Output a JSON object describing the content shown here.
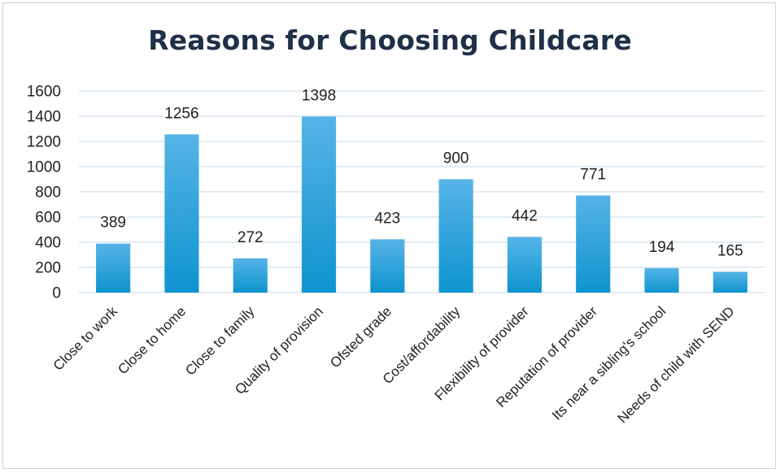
{
  "chart_data": {
    "type": "bar",
    "title": "Reasons for Choosing Childcare",
    "xlabel": "",
    "ylabel": "",
    "categories": [
      "Close to work",
      "Close to home",
      "Close to family",
      "Quality of provision",
      "Ofsted grade",
      "Cost/affordability",
      "Flexibility of provider",
      "Reputation of provider",
      "Its near a sibling's school",
      "Needs of child with SEND"
    ],
    "values": [
      389,
      1256,
      272,
      1398,
      423,
      900,
      442,
      771,
      194,
      165
    ],
    "ylim": [
      0,
      1600
    ],
    "yticks": [
      0,
      200,
      400,
      600,
      800,
      1000,
      1200,
      1400,
      1600
    ],
    "grid": true,
    "legend": "none",
    "data_labels": true
  },
  "colors": {
    "bar_top": "#56b4e6",
    "bar_bottom": "#0e94cf",
    "grid": "#cfe0ee",
    "title": "#1f3048"
  }
}
